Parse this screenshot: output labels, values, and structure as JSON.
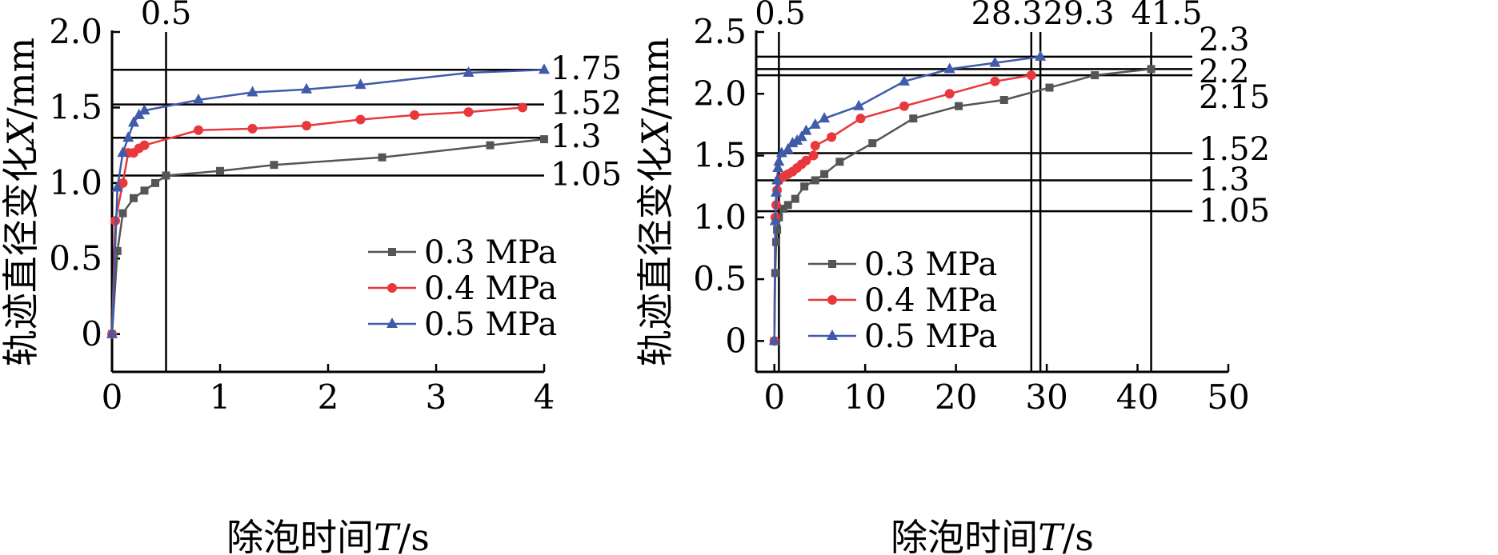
{
  "chart_data": [
    {
      "type": "line",
      "xlabel": "除泡时间T/s",
      "ylabel": "轨迹直径变化X/mm",
      "xlim": [
        0,
        4
      ],
      "ylim": [
        -0.25,
        2.0
      ],
      "x_ticks": [
        "0",
        "1",
        "2",
        "3",
        "4"
      ],
      "y_ticks": [
        "0",
        "0.5",
        "1.0",
        "1.5",
        "2.0"
      ],
      "ref_vertical": [
        "0.5"
      ],
      "ref_horizontal": [
        "1.75",
        "1.52",
        "1.3",
        "1.05"
      ],
      "legend_position": "lower-right",
      "series": [
        {
          "name": "0.3 MPa",
          "color": "#555555",
          "marker": "square",
          "points": [
            [
              0,
              0
            ],
            [
              0.05,
              0.55
            ],
            [
              0.1,
              0.8
            ],
            [
              0.2,
              0.9
            ],
            [
              0.3,
              0.95
            ],
            [
              0.4,
              1.0
            ],
            [
              0.5,
              1.05
            ],
            [
              1.0,
              1.08
            ],
            [
              1.5,
              1.12
            ],
            [
              2.5,
              1.17
            ],
            [
              3.5,
              1.25
            ],
            [
              4.0,
              1.29
            ]
          ]
        },
        {
          "name": "0.4 MPa",
          "color": "#e8383c",
          "marker": "circle",
          "points": [
            [
              0,
              0
            ],
            [
              0.03,
              0.75
            ],
            [
              0.1,
              1.0
            ],
            [
              0.15,
              1.2
            ],
            [
              0.2,
              1.2
            ],
            [
              0.25,
              1.23
            ],
            [
              0.3,
              1.25
            ],
            [
              0.8,
              1.35
            ],
            [
              1.3,
              1.36
            ],
            [
              1.8,
              1.38
            ],
            [
              2.3,
              1.42
            ],
            [
              2.8,
              1.45
            ],
            [
              3.3,
              1.47
            ],
            [
              3.8,
              1.5
            ]
          ]
        },
        {
          "name": "0.5 MPa",
          "color": "#3f5ba9",
          "marker": "triangle",
          "points": [
            [
              0,
              0
            ],
            [
              0.05,
              0.97
            ],
            [
              0.1,
              1.2
            ],
            [
              0.15,
              1.3
            ],
            [
              0.2,
              1.4
            ],
            [
              0.25,
              1.45
            ],
            [
              0.3,
              1.48
            ],
            [
              0.8,
              1.55
            ],
            [
              1.3,
              1.6
            ],
            [
              1.8,
              1.62
            ],
            [
              2.3,
              1.65
            ],
            [
              3.3,
              1.73
            ],
            [
              4.0,
              1.75
            ]
          ]
        }
      ]
    },
    {
      "type": "line",
      "xlabel": "除泡时间T/s",
      "ylabel": "轨迹直径变化X/mm",
      "xlim": [
        -2,
        50
      ],
      "ylim": [
        -0.25,
        2.5
      ],
      "x_ticks": [
        "0",
        "10",
        "20",
        "30",
        "40",
        "50"
      ],
      "y_ticks": [
        "0",
        "0.5",
        "1.0",
        "1.5",
        "2.0",
        "2.5"
      ],
      "ref_vertical": [
        "0.5",
        "28.3",
        "29.3",
        "41.5"
      ],
      "ref_horizontal": [
        "2.3",
        "2.2",
        "2.15",
        "1.52",
        "1.3",
        "1.05"
      ],
      "legend_position": "lower-left",
      "series": [
        {
          "name": "0.3 MPa",
          "color": "#555555",
          "marker": "square",
          "points": [
            [
              0,
              0
            ],
            [
              0.1,
              0.55
            ],
            [
              0.2,
              0.8
            ],
            [
              0.3,
              0.9
            ],
            [
              0.5,
              1.0
            ],
            [
              1,
              1.07
            ],
            [
              1.5,
              1.1
            ],
            [
              2.3,
              1.15
            ],
            [
              3.3,
              1.25
            ],
            [
              4.5,
              1.3
            ],
            [
              5.5,
              1.35
            ],
            [
              7.2,
              1.45
            ],
            [
              10.8,
              1.6
            ],
            [
              15.3,
              1.8
            ],
            [
              20.3,
              1.9
            ],
            [
              25.3,
              1.95
            ],
            [
              30.3,
              2.05
            ],
            [
              35.3,
              2.15
            ],
            [
              41.5,
              2.2
            ]
          ]
        },
        {
          "name": "0.4 MPa",
          "color": "#e8383c",
          "marker": "circle",
          "points": [
            [
              0,
              0
            ],
            [
              0.1,
              1.0
            ],
            [
              0.2,
              1.1
            ],
            [
              0.3,
              1.22
            ],
            [
              0.5,
              1.3
            ],
            [
              1,
              1.33
            ],
            [
              1.5,
              1.35
            ],
            [
              2,
              1.37
            ],
            [
              2.5,
              1.4
            ],
            [
              3,
              1.43
            ],
            [
              3.5,
              1.46
            ],
            [
              4.3,
              1.5
            ],
            [
              4.5,
              1.58
            ],
            [
              6.3,
              1.65
            ],
            [
              9.5,
              1.8
            ],
            [
              14.3,
              1.9
            ],
            [
              19.3,
              2.0
            ],
            [
              24.3,
              2.1
            ],
            [
              28.3,
              2.15
            ]
          ]
        },
        {
          "name": "0.5 MPa",
          "color": "#3f5ba9",
          "marker": "triangle",
          "points": [
            [
              0,
              0
            ],
            [
              0.1,
              0.97
            ],
            [
              0.2,
              1.2
            ],
            [
              0.3,
              1.3
            ],
            [
              0.4,
              1.4
            ],
            [
              0.5,
              1.45
            ],
            [
              0.8,
              1.52
            ],
            [
              1.5,
              1.55
            ],
            [
              2,
              1.6
            ],
            [
              2.5,
              1.62
            ],
            [
              3,
              1.65
            ],
            [
              3.5,
              1.7
            ],
            [
              4.5,
              1.75
            ],
            [
              5.5,
              1.8
            ],
            [
              9.3,
              1.9
            ],
            [
              14.3,
              2.1
            ],
            [
              19.3,
              2.2
            ],
            [
              24.3,
              2.25
            ],
            [
              29.3,
              2.3
            ]
          ]
        }
      ]
    }
  ]
}
